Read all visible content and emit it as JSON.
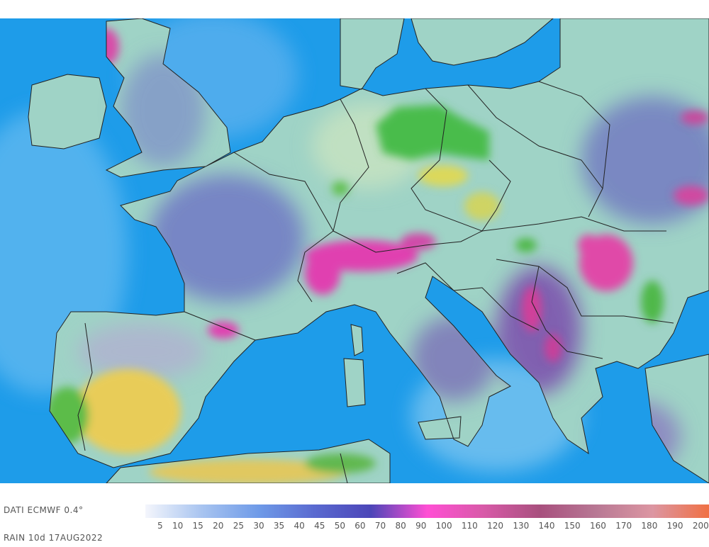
{
  "source_label": "DATI ECMWF 0.4°",
  "field_label": "RAIN 10d 17AUG2022",
  "legend": {
    "ticks": [
      "5",
      "10",
      "15",
      "20",
      "25",
      "30",
      "35",
      "40",
      "45",
      "50",
      "60",
      "70",
      "80",
      "90",
      "100",
      "110",
      "120",
      "130",
      "140",
      "150",
      "160",
      "170",
      "180",
      "190",
      "200"
    ],
    "colors": [
      "#f4f6fc",
      "#a8c4f0",
      "#6f9be8",
      "#5a6ad0",
      "#4c46b8",
      "#ff4fd4",
      "#d85aa8",
      "#a8507e",
      "#b87894",
      "#dc96a2",
      "#f07044"
    ]
  },
  "colors": {
    "sea": "#1e9ce9",
    "land": "#9fd3c6",
    "border": "#222222"
  }
}
